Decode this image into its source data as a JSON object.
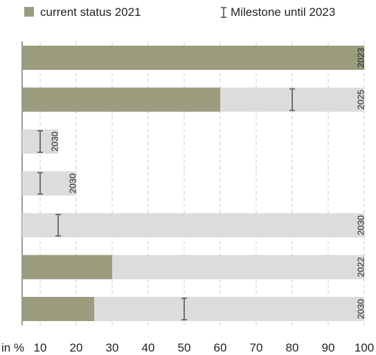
{
  "chart_data": {
    "type": "bar",
    "orientation": "horizontal",
    "x_unit_label": "in %",
    "xlim": [
      5,
      100
    ],
    "x_ticks": [
      10,
      20,
      30,
      40,
      50,
      60,
      70,
      80,
      90,
      100
    ],
    "grid": "vertical dashed",
    "legend": {
      "placement": "top",
      "status_label": "current status 2021",
      "milestone_label": "Milestone until 2023"
    },
    "colors": {
      "status": "#9a9c7d",
      "target": "#dcdcdc",
      "milestone": "#6e6e6e",
      "grid": "#cccccc"
    },
    "bars": [
      {
        "target": 100,
        "status": 100,
        "milestone": null,
        "target_year": "2023"
      },
      {
        "target": 100,
        "status": 60,
        "milestone": 80,
        "target_year": "2025"
      },
      {
        "target": 15,
        "status": 0,
        "milestone": 10,
        "target_year": "2030"
      },
      {
        "target": 20,
        "status": 0,
        "milestone": 10,
        "target_year": "2030"
      },
      {
        "target": 100,
        "status": 0,
        "milestone": 15,
        "target_year": "2030"
      },
      {
        "target": 100,
        "status": 30,
        "milestone": null,
        "target_year": "2022"
      },
      {
        "target": 100,
        "status": 25,
        "milestone": 50,
        "target_year": "2030"
      }
    ]
  }
}
